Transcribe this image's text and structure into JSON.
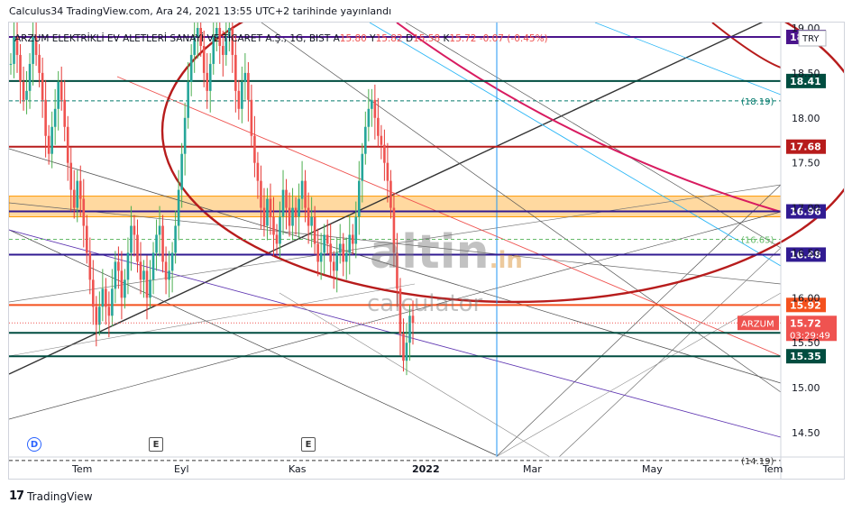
{
  "header": {
    "text": "Calculus34 TradingView.com, Ara 24, 2021 13:55 UTC+2 tarihinde yayınlandı"
  },
  "footer": {
    "logo": "17",
    "brand": "TradingView"
  },
  "legend": {
    "symbol": "ARZUM ELEKTRİKLİ EV ALETLERİ SANAYİ VE TİCARET A.Ş., 1G, BIST",
    "o_label": "A",
    "o": "15.80",
    "h_label": "Y",
    "h": "15.82",
    "l_label": "D",
    "l": "15.58",
    "c_label": "K",
    "c": "15.72",
    "change": "-0.07 (-0.45%)"
  },
  "currency": "TRY",
  "watermark": {
    "main": "altin",
    "suffix": ".in",
    "sub": "calculator"
  },
  "markers": [
    {
      "type": "dividend",
      "symbol": "D"
    },
    {
      "type": "earnings",
      "symbol": "E"
    },
    {
      "type": "earnings",
      "symbol": "E"
    }
  ],
  "chart_data": {
    "type": "candlestick",
    "y_axis": {
      "ticks": [
        "19.00",
        "18.50",
        "18.00",
        "17.50",
        "17.00",
        "16.50",
        "16.00",
        "15.50",
        "15.00",
        "14.50"
      ],
      "range": [
        14.2,
        19.1
      ]
    },
    "x_axis": {
      "ticks": [
        "Tem",
        "Eyl",
        "Kas",
        "2022",
        "Mar",
        "May",
        "Tem"
      ]
    },
    "colors": {
      "up": "#26a69a",
      "down": "#ef5350",
      "wick_up": "#4caf50",
      "wick_down": "#e53935"
    },
    "horizontal_levels": [
      {
        "value": 18.9,
        "label": "18.9",
        "color": "#4a148c"
      },
      {
        "value": 18.41,
        "label": "18.41",
        "color": "#004d40"
      },
      {
        "value": 17.68,
        "label": "17.68",
        "color": "#b71c1c"
      },
      {
        "value": 16.96,
        "label": "16.96",
        "color": "#311b92"
      },
      {
        "value": 16.48,
        "label": "16.48",
        "color": "#311b92"
      },
      {
        "value": 15.92,
        "label": "15.92",
        "color": "#f4511e"
      },
      {
        "value": 15.61,
        "label": "15.61",
        "color": "#004d40"
      },
      {
        "value": 15.35,
        "label": "15.35",
        "color": "#004d40"
      }
    ],
    "dashed_levels": [
      {
        "value": 18.19,
        "label": "(18.19)",
        "color": "#00796b"
      },
      {
        "value": 16.65,
        "label": "(16.65)",
        "color": "#66bb6a"
      },
      {
        "value": 14.19,
        "label": "(14.19)",
        "color": "#333333"
      }
    ],
    "zone": {
      "from": 16.9,
      "to": 17.13,
      "color": "#ffcc80"
    },
    "last_price": {
      "symbol": "ARZUM",
      "value": "15.72",
      "countdown": "03:29:49",
      "color": "#ef5350"
    },
    "series_close": [
      18.6,
      18.9,
      18.7,
      18.4,
      18.2,
      18.3,
      18.6,
      18.9,
      18.7,
      18.5,
      18.2,
      17.8,
      17.6,
      17.9,
      18.1,
      18.4,
      18.2,
      17.9,
      17.5,
      17.2,
      17.0,
      17.3,
      17.1,
      16.8,
      16.5,
      16.2,
      15.9,
      15.7,
      15.9,
      16.1,
      15.9,
      15.8,
      16.1,
      16.4,
      16.3,
      16.0,
      16.2,
      16.5,
      16.8,
      16.7,
      16.4,
      16.2,
      16.3,
      16.0,
      16.2,
      16.5,
      16.7,
      16.8,
      16.4,
      16.2,
      16.3,
      16.5,
      16.8,
      17.2,
      17.6,
      18.0,
      18.4,
      18.7,
      18.9,
      19.0,
      18.8,
      18.5,
      18.3,
      18.6,
      18.9,
      19.0,
      18.8,
      18.7,
      18.9,
      19.0,
      18.7,
      18.3,
      18.1,
      18.4,
      18.5,
      18.2,
      17.8,
      17.5,
      17.3,
      17.0,
      16.8,
      17.1,
      16.9,
      16.7,
      16.6,
      16.9,
      17.2,
      17.0,
      16.8,
      17.0,
      16.9,
      17.1,
      17.3,
      17.0,
      16.8,
      16.9,
      16.6,
      16.4,
      16.5,
      16.7,
      16.6,
      16.4,
      16.3,
      16.5,
      16.6,
      16.4,
      16.5,
      16.7,
      16.6,
      16.9,
      17.3,
      17.6,
      17.9,
      18.1,
      18.2,
      18.0,
      17.8,
      17.7,
      17.5,
      17.3,
      17.0,
      16.5,
      16.1,
      15.6,
      15.3,
      15.5,
      15.8,
      15.72
    ]
  }
}
